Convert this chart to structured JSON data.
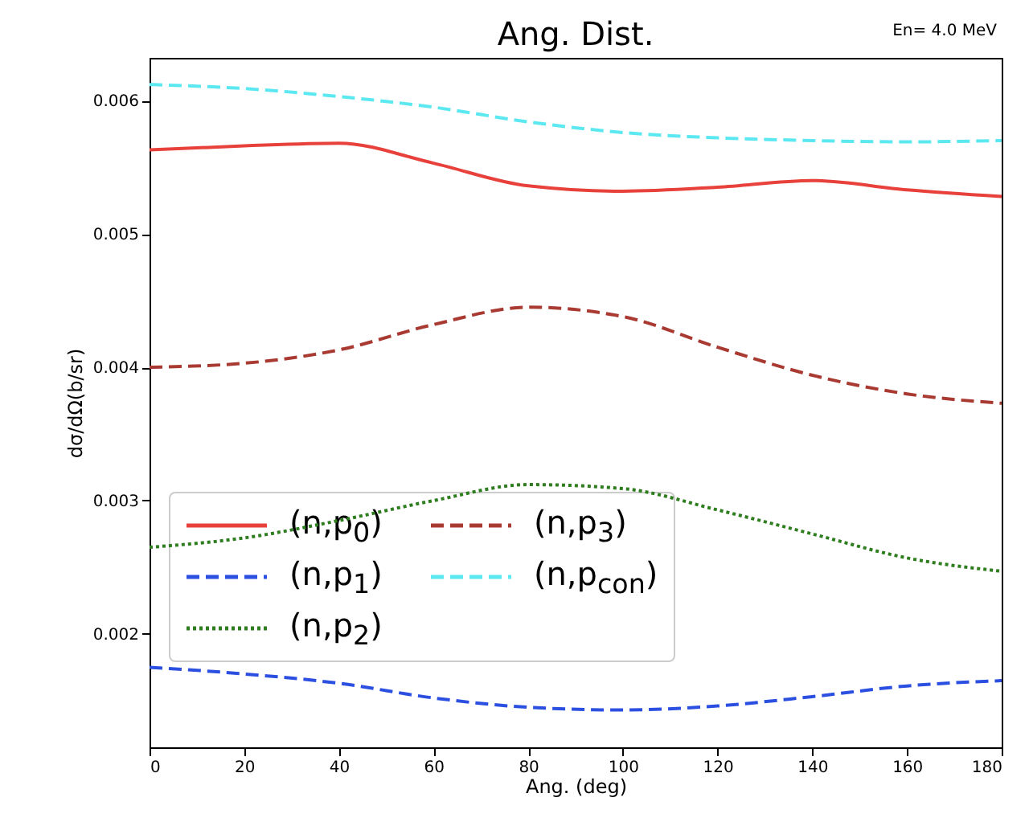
{
  "chart_data": {
    "type": "line",
    "title": "Ang. Dist.",
    "annotations": [
      "En= 4.0 MeV"
    ],
    "xlabel": "Ang. (deg)",
    "ylabel": "dσ/dΩ(b/sr)",
    "x": [
      0,
      20,
      40,
      60,
      80,
      100,
      120,
      140,
      160,
      180
    ],
    "series": [
      {
        "name": "(n,p$_{0}$)",
        "color": "#e8403a",
        "line_style": "solid",
        "values": [
          0.00563,
          0.00566,
          0.00568,
          0.00553,
          0.00536,
          0.00532,
          0.00535,
          0.0054,
          0.00533,
          0.00528
        ]
      },
      {
        "name": "(n,p$_{1}$)",
        "color": "#2b4fe0",
        "line_style": "dashed",
        "values": [
          0.00175,
          0.0017,
          0.00163,
          0.00152,
          0.00145,
          0.00143,
          0.00146,
          0.00153,
          0.00161,
          0.00165
        ]
      },
      {
        "name": "(n,p$_{2}$)",
        "color": "#2e7d1f",
        "line_style": "dotted",
        "values": [
          0.00265,
          0.00272,
          0.00285,
          0.003,
          0.00312,
          0.00309,
          0.00293,
          0.00275,
          0.00257,
          0.00247
        ]
      },
      {
        "name": "(n,p$_{3}$)",
        "color": "#a83a32",
        "line_style": "dashed",
        "values": [
          0.004,
          0.00403,
          0.00413,
          0.00432,
          0.00445,
          0.00438,
          0.00415,
          0.00394,
          0.0038,
          0.00373
        ]
      },
      {
        "name": "(n,p$_{con}$)",
        "color": "#5ce8f0",
        "line_style": "dashed",
        "values": [
          0.00612,
          0.00609,
          0.00603,
          0.00595,
          0.00584,
          0.00576,
          0.00572,
          0.0057,
          0.00569,
          0.0057
        ]
      }
    ],
    "xlim": [
      0,
      180
    ],
    "xticks": [
      0,
      20,
      40,
      60,
      80,
      100,
      120,
      140,
      160,
      180
    ],
    "ylim": [
      0.00115,
      0.00632
    ],
    "yticks": [
      0.002,
      0.003,
      0.004,
      0.005,
      0.006
    ],
    "grid": false,
    "legend": "bottom left"
  }
}
